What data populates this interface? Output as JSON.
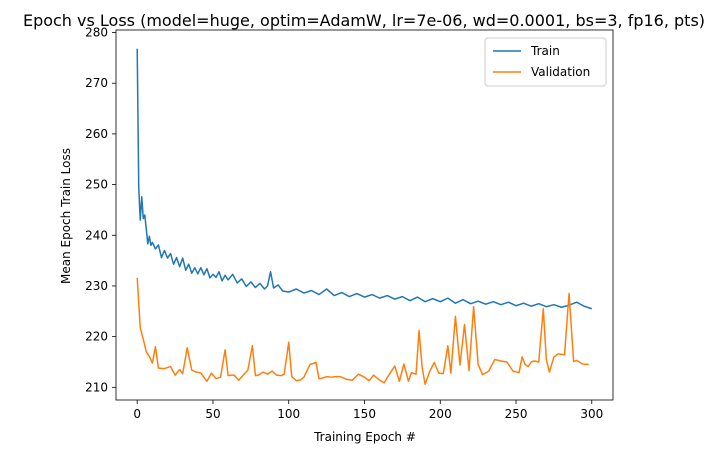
{
  "chart_data": {
    "type": "line",
    "title": "Epoch vs Loss (model=huge, optim=AdamW, lr=7e-06, wd=0.0001, bs=3, fp16, pts)",
    "xlabel": "Training Epoch #",
    "ylabel": "Mean Epoch Train Loss",
    "xlim": [
      -14,
      314
    ],
    "ylim": [
      207.5,
      280.5
    ],
    "xticks": [
      0,
      50,
      100,
      150,
      200,
      250,
      300
    ],
    "yticks": [
      210,
      220,
      230,
      240,
      250,
      260,
      270,
      280
    ],
    "grid": false,
    "legend_position": "upper right",
    "series": [
      {
        "name": "Train",
        "color": "#1f77b4",
        "x": [
          0,
          1,
          2,
          3,
          4,
          5,
          6,
          7,
          8,
          9,
          10,
          12,
          14,
          16,
          18,
          20,
          22,
          24,
          26,
          28,
          30,
          32,
          34,
          36,
          38,
          40,
          42,
          44,
          46,
          48,
          50,
          52,
          54,
          56,
          58,
          60,
          63,
          66,
          69,
          72,
          75,
          78,
          81,
          84,
          86,
          88,
          90,
          93,
          96,
          100,
          105,
          110,
          115,
          120,
          125,
          130,
          135,
          140,
          145,
          150,
          155,
          160,
          165,
          170,
          175,
          180,
          185,
          190,
          195,
          200,
          205,
          210,
          215,
          220,
          225,
          230,
          235,
          240,
          245,
          250,
          255,
          260,
          265,
          270,
          275,
          280,
          285,
          290,
          295,
          300
        ],
        "values": [
          276.8,
          249.5,
          243.0,
          247.6,
          243.3,
          244.0,
          241.2,
          238.3,
          239.8,
          238.0,
          238.6,
          237.3,
          238.1,
          235.6,
          237.0,
          235.5,
          236.4,
          234.3,
          235.6,
          233.8,
          235.5,
          233.1,
          234.3,
          232.5,
          233.6,
          232.4,
          233.6,
          232.2,
          233.4,
          231.6,
          232.3,
          231.7,
          232.8,
          231.0,
          232.1,
          231.2,
          232.3,
          230.6,
          231.4,
          229.9,
          230.8,
          229.7,
          230.5,
          229.4,
          230.0,
          232.8,
          229.6,
          230.2,
          229.0,
          228.8,
          229.4,
          228.6,
          229.1,
          228.3,
          229.4,
          228.1,
          228.7,
          227.9,
          228.5,
          227.8,
          228.3,
          227.6,
          228.1,
          227.4,
          227.9,
          227.1,
          227.8,
          226.9,
          227.5,
          226.9,
          227.6,
          226.6,
          227.3,
          226.5,
          227.0,
          226.4,
          226.9,
          226.3,
          226.8,
          226.1,
          226.6,
          226.0,
          226.5,
          225.9,
          226.3,
          225.8,
          226.2,
          226.8,
          226.0,
          225.5
        ]
      },
      {
        "name": "Validation",
        "color": "#ff7f0e",
        "x": [
          0,
          2,
          4,
          6,
          8,
          10,
          12,
          14,
          18,
          22,
          25,
          28,
          30,
          33,
          36,
          38,
          42,
          46,
          49,
          52,
          55,
          58,
          60,
          62,
          64,
          67,
          70,
          73,
          76,
          78,
          80,
          83,
          86,
          89,
          92,
          95,
          97,
          100,
          102,
          105,
          108,
          110,
          114,
          118,
          120,
          122,
          125,
          128,
          131,
          134,
          138,
          142,
          146,
          150,
          153,
          156,
          160,
          163,
          166,
          170,
          173,
          176,
          179,
          181,
          184,
          186,
          188,
          190,
          193,
          196,
          199,
          202,
          205,
          207,
          210,
          213,
          216,
          219,
          222,
          225,
          228,
          232,
          236,
          240,
          244,
          248,
          252,
          254,
          256,
          258,
          260,
          262,
          265,
          268,
          270,
          272,
          275,
          278,
          280,
          282,
          285,
          288,
          290,
          294,
          298
        ],
        "values": [
          231.6,
          221.8,
          219.5,
          217.0,
          216.1,
          214.8,
          218.0,
          213.8,
          213.7,
          214.1,
          212.4,
          213.5,
          212.7,
          217.8,
          213.4,
          213.1,
          212.8,
          211.2,
          212.8,
          211.7,
          212.0,
          217.4,
          212.3,
          212.4,
          212.4,
          211.4,
          212.4,
          213.4,
          218.2,
          212.3,
          212.4,
          213.0,
          212.6,
          213.2,
          212.4,
          212.3,
          212.6,
          218.9,
          212.1,
          211.3,
          211.5,
          212.0,
          214.5,
          214.9,
          211.7,
          211.8,
          212.1,
          212.0,
          212.1,
          212.1,
          211.6,
          211.4,
          212.6,
          212.0,
          211.3,
          212.4,
          211.4,
          210.9,
          212.4,
          214.2,
          211.2,
          214.6,
          211.2,
          212.9,
          212.6,
          221.2,
          214.0,
          210.6,
          213.1,
          214.9,
          212.8,
          212.7,
          218.2,
          212.8,
          224.0,
          214.4,
          222.4,
          213.3,
          225.9,
          214.5,
          212.5,
          213.2,
          215.5,
          215.2,
          215.0,
          213.2,
          212.9,
          216.0,
          214.5,
          214.1,
          215.0,
          215.2,
          215.0,
          225.5,
          215.5,
          213.0,
          216.0,
          216.6,
          216.5,
          216.4,
          228.5,
          215.1,
          215.3,
          214.6,
          214.5
        ]
      }
    ]
  }
}
